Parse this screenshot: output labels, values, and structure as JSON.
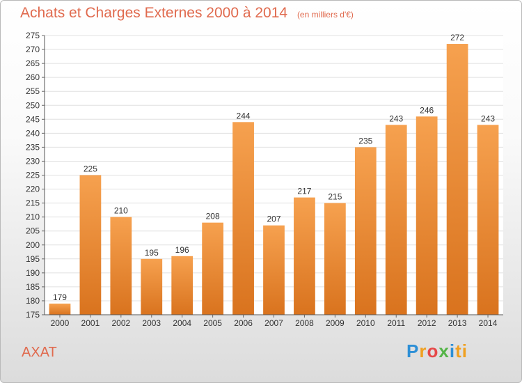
{
  "header": {
    "title": "Achats et Charges Externes 2000 à 2014",
    "subtitle": "(en milliers d'€)"
  },
  "footer": {
    "place": "AXAT",
    "logo_letters": [
      "P",
      "r",
      "o",
      "x",
      "i",
      "ti"
    ]
  },
  "colors": {
    "bar_top": "#f6a14f",
    "bar_bottom": "#d9731e",
    "title": "#e06a4e"
  },
  "chart_data": {
    "type": "bar",
    "title": "Achats et Charges Externes 2000 à 2014",
    "subtitle": "(en milliers d'€)",
    "xlabel": "",
    "ylabel": "",
    "ylim": [
      175,
      275
    ],
    "yticks": [
      175,
      180,
      185,
      190,
      195,
      200,
      205,
      210,
      215,
      220,
      225,
      230,
      235,
      240,
      245,
      250,
      255,
      260,
      265,
      270,
      275
    ],
    "grid": true,
    "categories": [
      "2000",
      "2001",
      "2002",
      "2003",
      "2004",
      "2005",
      "2006",
      "2007",
      "2008",
      "2009",
      "2010",
      "2011",
      "2012",
      "2013",
      "2014"
    ],
    "values": [
      179,
      225,
      210,
      195,
      196,
      208,
      244,
      207,
      217,
      215,
      235,
      243,
      246,
      272,
      243
    ]
  }
}
